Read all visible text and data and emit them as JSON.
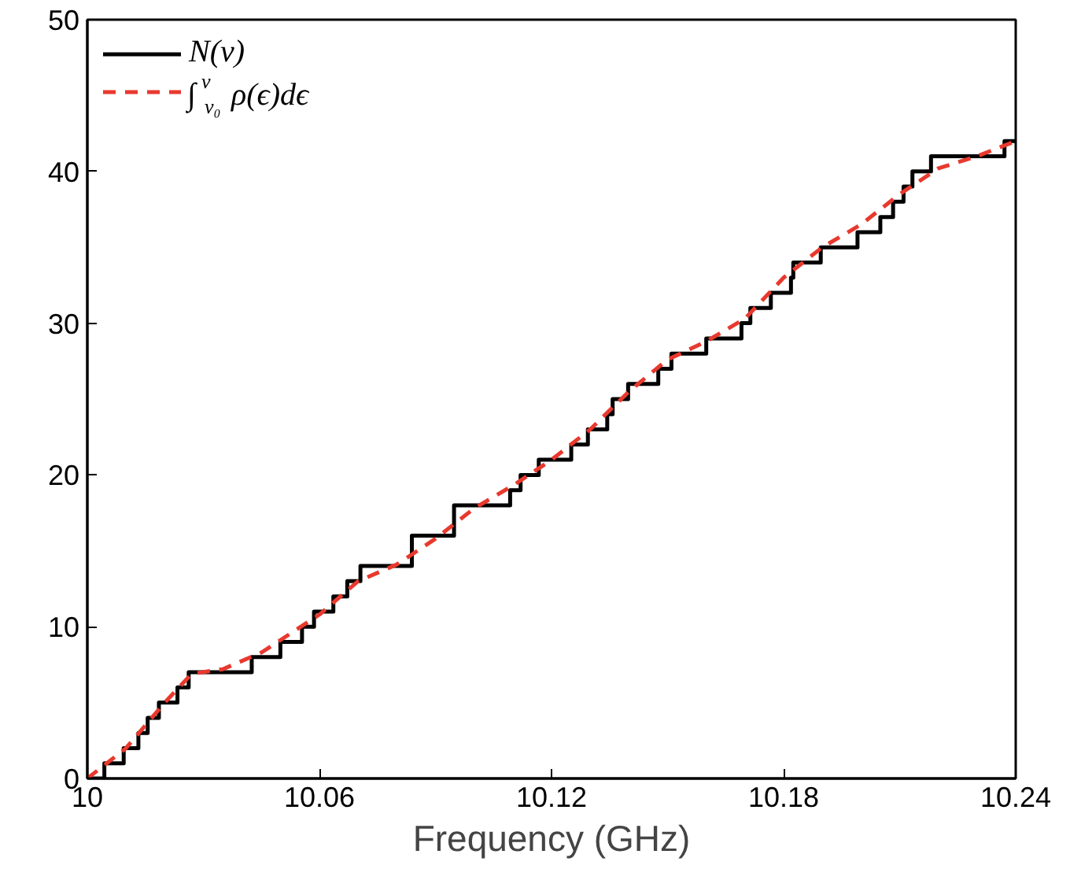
{
  "chart_data": {
    "type": "line",
    "xlabel": "Frequency (GHz)",
    "xlim": [
      10,
      10.24
    ],
    "ylim": [
      0,
      50
    ],
    "xticks": [
      10,
      10.06,
      10.12,
      10.18,
      10.24
    ],
    "yticks": [
      0,
      10,
      20,
      30,
      40,
      50
    ],
    "grid": false,
    "legend": "top left",
    "series": [
      {
        "name": "N(ν)",
        "type": "step",
        "color": "#000000",
        "line_style": "solid",
        "x": [
          10,
          10.0044,
          10.0094,
          10.0132,
          10.0156,
          10.0185,
          10.0233,
          10.0262,
          10.0425,
          10.0499,
          10.0555,
          10.0586,
          10.0636,
          10.0672,
          10.0706,
          10.0839,
          10.0948,
          10.1093,
          10.112,
          10.1167,
          10.1251,
          10.1294,
          10.1344,
          10.1358,
          10.1398,
          10.1476,
          10.151,
          10.16,
          10.1691,
          10.1714,
          10.1767,
          10.1819,
          10.1825,
          10.1896,
          10.1991,
          10.205,
          10.2083,
          10.211,
          10.2133,
          10.2181,
          10.2371,
          10.24
        ],
        "values": [
          0,
          1,
          2,
          3,
          4,
          5,
          6,
          7,
          8,
          9,
          10,
          11,
          12,
          13,
          14,
          16,
          18,
          19,
          20,
          21,
          22,
          23,
          24,
          25,
          26,
          27,
          28,
          29,
          30,
          31,
          32,
          33,
          34,
          35,
          36,
          37,
          38,
          39,
          40,
          41,
          42,
          42
        ]
      },
      {
        "name": "∫$^{ν}$$_{ν₀}$ ρ(ϵ)dϵ",
        "color": "#e8392e",
        "line_style": "dashed",
        "x": [
          10,
          10.01,
          10.02,
          10.027,
          10.035,
          10.045,
          10.06,
          10.07,
          10.08,
          10.09,
          10.1,
          10.11,
          10.12,
          10.13,
          10.14,
          10.15,
          10.16,
          10.17,
          10.18,
          10.19,
          10.2,
          10.21,
          10.22,
          10.23,
          10.24
        ],
        "values": [
          0,
          2,
          5,
          6.9,
          7.2,
          8.3,
          10.8,
          13,
          14.1,
          15.8,
          17.8,
          19.3,
          21,
          23,
          25.5,
          27.6,
          28.8,
          30.3,
          33,
          35,
          36.5,
          38.5,
          40.2,
          41,
          42
        ]
      }
    ]
  }
}
